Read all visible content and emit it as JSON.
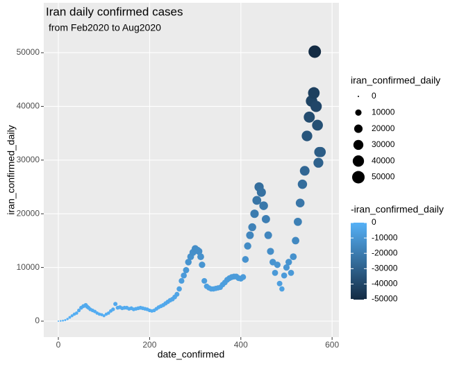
{
  "chart_data": {
    "type": "scatter",
    "title": "Iran daily confirmed cases",
    "subtitle": "from Feb2020 to Aug2020",
    "x_label": "date_confirmed",
    "y_label": "iran_confirmed_daily",
    "x": [
      0,
      5,
      10,
      15,
      20,
      25,
      30,
      35,
      40,
      45,
      50,
      55,
      60,
      63,
      66,
      70,
      75,
      80,
      85,
      90,
      95,
      100,
      105,
      110,
      115,
      120,
      125,
      130,
      135,
      140,
      145,
      150,
      155,
      160,
      165,
      170,
      175,
      180,
      185,
      190,
      195,
      200,
      205,
      210,
      215,
      220,
      225,
      230,
      235,
      240,
      245,
      250,
      255,
      260,
      265,
      270,
      275,
      280,
      285,
      290,
      295,
      300,
      305,
      308,
      312,
      315,
      320,
      325,
      330,
      335,
      340,
      345,
      350,
      355,
      360,
      365,
      370,
      375,
      380,
      385,
      390,
      395,
      400,
      405,
      410,
      415,
      420,
      425,
      430,
      435,
      440,
      445,
      450,
      455,
      460,
      465,
      470,
      475,
      480,
      485,
      490,
      495,
      500,
      505,
      510,
      515,
      520,
      525,
      530,
      535,
      540,
      545,
      550,
      555,
      560,
      562,
      565,
      568,
      570,
      572,
      575
    ],
    "values": [
      0,
      50,
      100,
      200,
      400,
      700,
      1000,
      1300,
      1500,
      2000,
      2500,
      2800,
      3000,
      2700,
      2500,
      2200,
      2000,
      1800,
      1500,
      1300,
      1200,
      1000,
      1300,
      1500,
      1900,
      2200,
      3200,
      2500,
      2600,
      2400,
      2500,
      2500,
      2300,
      2400,
      2200,
      2300,
      2400,
      2500,
      2400,
      2300,
      2200,
      2000,
      1900,
      2000,
      2300,
      2600,
      2800,
      3000,
      3300,
      3600,
      3900,
      4100,
      4500,
      5000,
      6000,
      7500,
      8500,
      9500,
      11000,
      12000,
      12800,
      13500,
      13200,
      13000,
      12000,
      10500,
      7500,
      6500,
      6200,
      6000,
      6000,
      6100,
      6200,
      6300,
      6800,
      7200,
      7700,
      8000,
      8200,
      8300,
      8300,
      8000,
      7900,
      8200,
      11500,
      14000,
      16000,
      17500,
      20000,
      22500,
      25000,
      24000,
      21500,
      19000,
      16000,
      13000,
      11000,
      9000,
      10500,
      7000,
      6000,
      8500,
      10000,
      11000,
      9000,
      12000,
      15000,
      18500,
      22000,
      25500,
      28000,
      34500,
      38000,
      41000,
      42500,
      50200,
      40000,
      36500,
      29500,
      31500,
      31500
    ],
    "xlim": [
      -32,
      615
    ],
    "ylim": [
      -2970,
      59300
    ],
    "xticks": [
      0,
      200,
      400,
      600
    ],
    "yticks": [
      0,
      10000,
      20000,
      30000,
      40000,
      50000
    ],
    "grid": true,
    "size_legend": {
      "title": "iran_confirmed_daily",
      "breaks": [
        0,
        10000,
        20000,
        30000,
        40000,
        50000
      ]
    },
    "color_legend": {
      "title": "-iran_confirmed_daily",
      "breaks": [
        0,
        -10000,
        -20000,
        -30000,
        -40000,
        -50000
      ],
      "color_low": "#132B43",
      "color_high": "#56B1F7"
    }
  }
}
